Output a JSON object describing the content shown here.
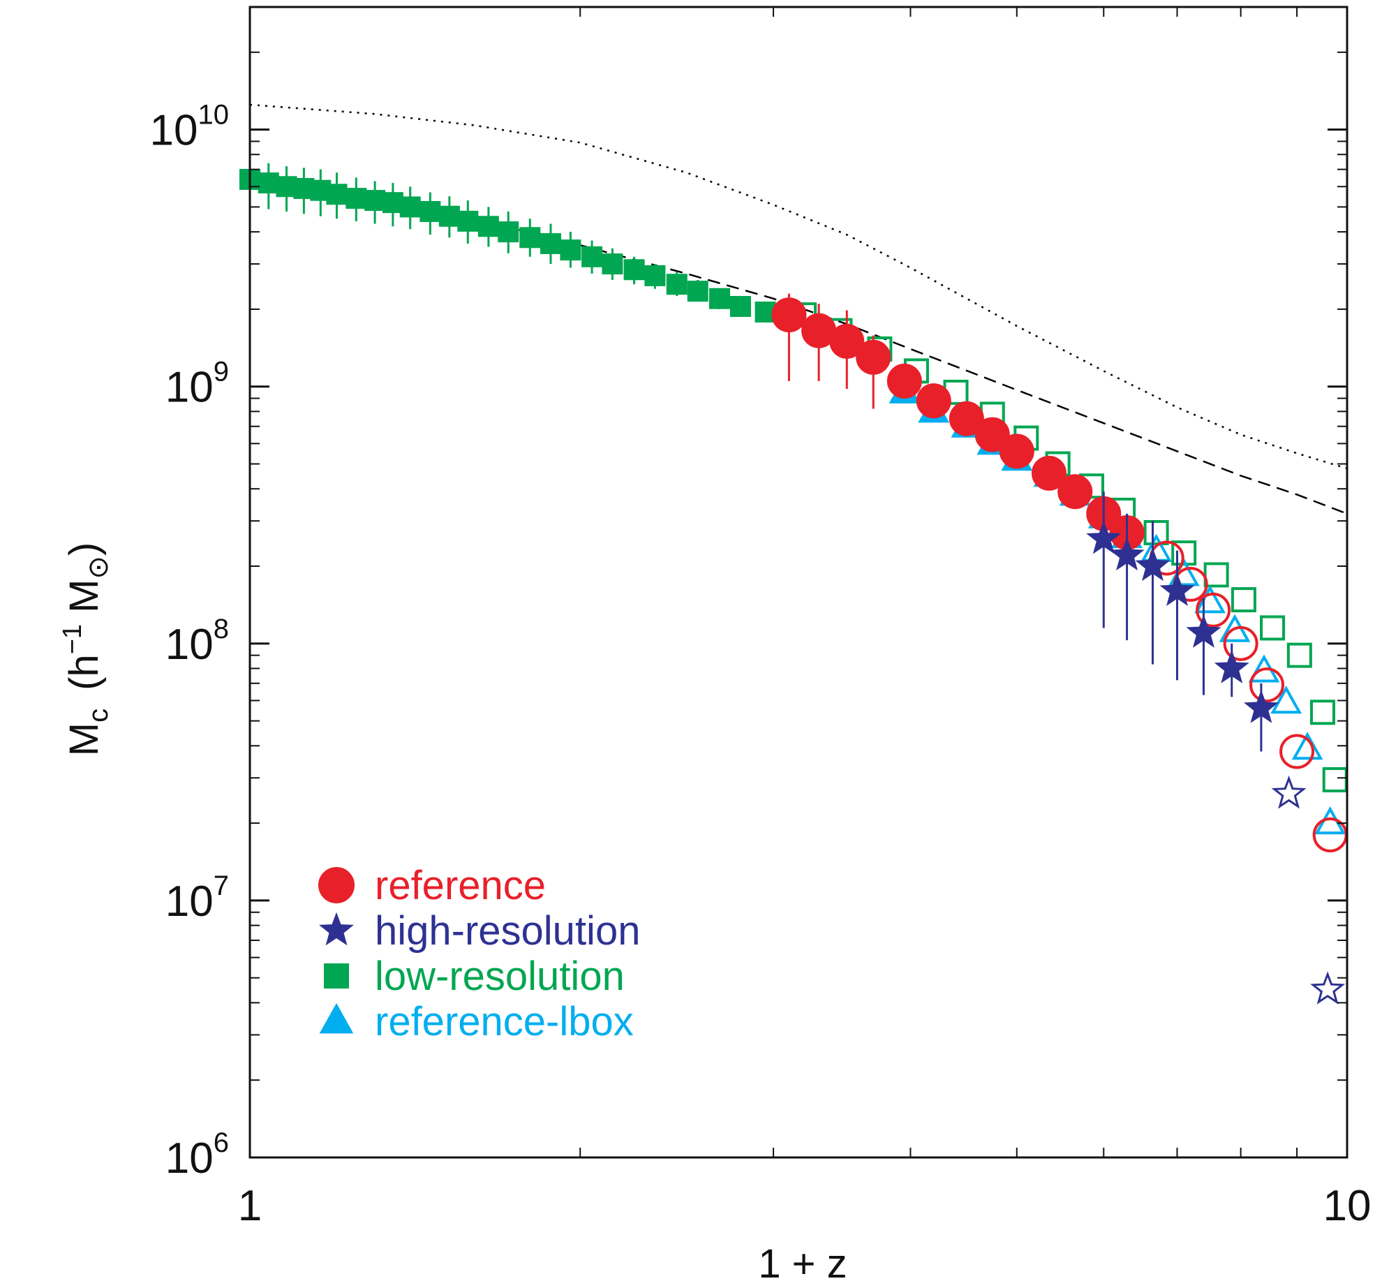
{
  "chart_data": {
    "type": "scatter",
    "title": "",
    "xlabel": "1 + z",
    "ylabel": "M_c (h^-1 M_sun)",
    "xscale": "log",
    "yscale": "log",
    "xlim": [
      1,
      10
    ],
    "ylim": [
      1000000,
      30000000000.0
    ],
    "grid": false,
    "legend_position": "bottom-left",
    "x_tick_labels": [
      {
        "value": 1,
        "label": "1"
      },
      {
        "value": 10,
        "label": "10"
      }
    ],
    "y_tick_labels": [
      {
        "value": 1000000,
        "base": "10",
        "exp": "6"
      },
      {
        "value": 10000000,
        "base": "10",
        "exp": "7"
      },
      {
        "value": 100000000,
        "base": "10",
        "exp": "8"
      },
      {
        "value": 1000000000,
        "base": "10",
        "exp": "9"
      },
      {
        "value": 10000000000,
        "base": "10",
        "exp": "10"
      }
    ],
    "y_axis_label_parts": {
      "main": "M",
      "main_sub": "c",
      "unit_h": "(h",
      "unit_exp": "−1",
      "unit_m": " M",
      "unit_sub": "⊙",
      "close": ")"
    },
    "series": [
      {
        "name": "reference",
        "color": "#e8202a",
        "marker": "circle",
        "points": [
          {
            "x": 3.1,
            "y": 1900000000.0,
            "lo": 1050000000.0,
            "hi": 2300000000.0
          },
          {
            "x": 3.3,
            "y": 1650000000.0,
            "lo": 1050000000.0,
            "hi": 2100000000.0
          },
          {
            "x": 3.5,
            "y": 1500000000.0,
            "lo": 980000000.0,
            "hi": 1980000000.0
          },
          {
            "x": 3.7,
            "y": 1300000000.0,
            "lo": 820000000.0,
            "hi": 1580000000.0
          },
          {
            "x": 3.95,
            "y": 1050000000.0,
            "lo": 920000000.0,
            "hi": 1200000000.0
          },
          {
            "x": 4.2,
            "y": 880000000.0,
            "lo": 780000000.0,
            "hi": 980000000.0
          },
          {
            "x": 4.5,
            "y": 750000000.0,
            "lo": 690000000.0,
            "hi": 800000000.0
          },
          {
            "x": 4.75,
            "y": 650000000.0,
            "lo": 600000000.0,
            "hi": 700000000.0
          },
          {
            "x": 5.0,
            "y": 560000000.0,
            "lo": 520000000.0,
            "hi": 600000000.0
          },
          {
            "x": 5.35,
            "y": 460000000.0,
            "lo": 430000000.0,
            "hi": 500000000.0
          },
          {
            "x": 5.65,
            "y": 390000000.0,
            "lo": 370000000.0,
            "hi": 420000000.0
          },
          {
            "x": 6.0,
            "y": 320000000.0,
            "lo": 300000000.0,
            "hi": 340000000.0
          },
          {
            "x": 6.3,
            "y": 270000000.0,
            "lo": 250000000.0,
            "hi": 290000000.0
          },
          {
            "x": 6.85,
            "y": 215000000.0,
            "open": true
          },
          {
            "x": 7.2,
            "y": 170000000.0,
            "open": true
          },
          {
            "x": 7.55,
            "y": 135000000.0,
            "open": true
          },
          {
            "x": 8.0,
            "y": 100000000.0,
            "open": true
          },
          {
            "x": 8.45,
            "y": 69000000.0,
            "open": true
          },
          {
            "x": 9.0,
            "y": 38000000.0,
            "open": true
          },
          {
            "x": 9.65,
            "y": 18000000.0,
            "open": true
          }
        ]
      },
      {
        "name": "high-resolution",
        "color": "#2e3192",
        "marker": "star",
        "points": [
          {
            "x": 6.0,
            "y": 255000000.0,
            "lo": 115000000.0,
            "hi": 390000000.0
          },
          {
            "x": 6.3,
            "y": 220000000.0,
            "lo": 103000000.0,
            "hi": 320000000.0
          },
          {
            "x": 6.65,
            "y": 200000000.0,
            "lo": 83000000.0,
            "hi": 300000000.0
          },
          {
            "x": 7.0,
            "y": 160000000.0,
            "lo": 72000000.0,
            "hi": 230000000.0
          },
          {
            "x": 7.4,
            "y": 110000000.0,
            "lo": 63000000.0,
            "hi": 150000000.0
          },
          {
            "x": 7.85,
            "y": 80000000.0,
            "lo": 62000000.0,
            "hi": 100000000.0
          },
          {
            "x": 8.35,
            "y": 56000000.0,
            "lo": 38000000.0,
            "hi": 70000000.0
          },
          {
            "x": 8.85,
            "y": 26000000.0,
            "open": true
          },
          {
            "x": 9.6,
            "y": 4500000.0,
            "open": true
          }
        ]
      },
      {
        "name": "low-resolution",
        "color": "#00a651",
        "marker": "square",
        "points": [
          {
            "x": 1.0,
            "y": 6400000000.0,
            "lo": 5000000000.0,
            "hi": 7600000000.0
          },
          {
            "x": 1.04,
            "y": 6200000000.0,
            "lo": 4900000000.0,
            "hi": 7400000000.0
          },
          {
            "x": 1.08,
            "y": 6000000000.0,
            "lo": 4800000000.0,
            "hi": 7200000000.0
          },
          {
            "x": 1.12,
            "y": 5900000000.0,
            "lo": 4700000000.0,
            "hi": 7100000000.0
          },
          {
            "x": 1.16,
            "y": 5800000000.0,
            "lo": 4600000000.0,
            "hi": 7000000000.0
          },
          {
            "x": 1.2,
            "y": 5600000000.0,
            "lo": 4500000000.0,
            "hi": 6800000000.0
          },
          {
            "x": 1.25,
            "y": 5400000000.0,
            "lo": 4400000000.0,
            "hi": 6500000000.0
          },
          {
            "x": 1.3,
            "y": 5300000000.0,
            "lo": 4300000000.0,
            "hi": 6300000000.0
          },
          {
            "x": 1.35,
            "y": 5200000000.0,
            "lo": 4200000000.0,
            "hi": 6200000000.0
          },
          {
            "x": 1.4,
            "y": 5000000000.0,
            "lo": 4100000000.0,
            "hi": 6000000000.0
          },
          {
            "x": 1.46,
            "y": 4800000000.0,
            "lo": 3900000000.0,
            "hi": 5700000000.0
          },
          {
            "x": 1.52,
            "y": 4600000000.0,
            "lo": 3800000000.0,
            "hi": 5500000000.0
          },
          {
            "x": 1.58,
            "y": 4400000000.0,
            "lo": 3600000000.0,
            "hi": 5300000000.0
          },
          {
            "x": 1.65,
            "y": 4200000000.0,
            "lo": 3500000000.0,
            "hi": 5000000000.0
          },
          {
            "x": 1.72,
            "y": 4000000000.0,
            "lo": 3300000000.0,
            "hi": 4800000000.0
          },
          {
            "x": 1.8,
            "y": 3800000000.0,
            "lo": 3200000000.0,
            "hi": 4500000000.0
          },
          {
            "x": 1.88,
            "y": 3600000000.0,
            "lo": 3000000000.0,
            "hi": 4300000000.0
          },
          {
            "x": 1.96,
            "y": 3400000000.0,
            "lo": 2900000000.0,
            "hi": 4000000000.0
          },
          {
            "x": 2.05,
            "y": 3200000000.0,
            "lo": 2750000000.0,
            "hi": 3700000000.0
          },
          {
            "x": 2.14,
            "y": 3000000000.0,
            "lo": 2600000000.0,
            "hi": 3450000000.0
          },
          {
            "x": 2.24,
            "y": 2850000000.0,
            "lo": 2500000000.0,
            "hi": 3200000000.0
          },
          {
            "x": 2.34,
            "y": 2700000000.0,
            "lo": 2400000000.0,
            "hi": 3000000000.0
          },
          {
            "x": 2.45,
            "y": 2500000000.0,
            "lo": 2250000000.0,
            "hi": 2800000000.0
          },
          {
            "x": 2.56,
            "y": 2350000000.0,
            "lo": 2150000000.0,
            "hi": 2600000000.0
          },
          {
            "x": 2.68,
            "y": 2200000000.0,
            "lo": 2000000000.0,
            "hi": 2400000000.0
          },
          {
            "x": 2.8,
            "y": 2050000000.0,
            "lo": 1900000000.0,
            "hi": 2200000000.0
          },
          {
            "x": 2.95,
            "y": 1950000000.0,
            "lo": 1850000000.0,
            "hi": 2050000000.0
          },
          {
            "x": 3.2,
            "y": 1900000000.0,
            "open": true
          },
          {
            "x": 3.45,
            "y": 1650000000.0,
            "open": true
          },
          {
            "x": 3.75,
            "y": 1400000000.0,
            "open": true
          },
          {
            "x": 4.05,
            "y": 1150000000.0,
            "open": true
          },
          {
            "x": 4.4,
            "y": 950000000.0,
            "open": true
          },
          {
            "x": 4.75,
            "y": 780000000.0,
            "open": true
          },
          {
            "x": 5.1,
            "y": 630000000.0,
            "open": true
          },
          {
            "x": 5.45,
            "y": 500000000.0,
            "open": true
          },
          {
            "x": 5.85,
            "y": 410000000.0,
            "open": true
          },
          {
            "x": 6.25,
            "y": 330000000.0,
            "open": true
          },
          {
            "x": 6.7,
            "y": 270000000.0,
            "open": true
          },
          {
            "x": 7.1,
            "y": 225000000.0,
            "open": true
          },
          {
            "x": 7.6,
            "y": 185000000.0,
            "open": true
          },
          {
            "x": 8.05,
            "y": 148000000.0,
            "open": true
          },
          {
            "x": 8.55,
            "y": 115000000.0,
            "open": true
          },
          {
            "x": 9.05,
            "y": 90000000.0,
            "open": true
          },
          {
            "x": 9.5,
            "y": 54000000.0,
            "open": true
          },
          {
            "x": 9.75,
            "y": 29500000.0,
            "open": true
          }
        ]
      },
      {
        "name": "reference-lbox",
        "color": "#00aeef",
        "marker": "triangle",
        "points": [
          {
            "x": 3.95,
            "y": 950000000.0
          },
          {
            "x": 4.2,
            "y": 800000000.0
          },
          {
            "x": 4.5,
            "y": 700000000.0
          },
          {
            "x": 4.75,
            "y": 600000000.0
          },
          {
            "x": 5.0,
            "y": 520000000.0
          },
          {
            "x": 5.35,
            "y": 450000000.0
          },
          {
            "x": 5.65,
            "y": 380000000.0
          },
          {
            "x": 6.0,
            "y": 310000000.0
          },
          {
            "x": 6.3,
            "y": 260000000.0
          },
          {
            "x": 6.7,
            "y": 230000000.0,
            "open": true
          },
          {
            "x": 7.1,
            "y": 185000000.0,
            "open": true
          },
          {
            "x": 7.5,
            "y": 145000000.0,
            "open": true
          },
          {
            "x": 7.9,
            "y": 112000000.0,
            "open": true
          },
          {
            "x": 8.4,
            "y": 78000000.0,
            "open": true
          },
          {
            "x": 8.8,
            "y": 59000000.0,
            "open": true
          },
          {
            "x": 9.2,
            "y": 39000000.0,
            "open": true
          },
          {
            "x": 9.65,
            "y": 20000000.0,
            "open": true
          }
        ]
      }
    ],
    "lines": [
      {
        "style": "dashed",
        "color": "#000000",
        "points": [
          [
            1,
            6300000000.0
          ],
          [
            1.3,
            5300000000.0
          ],
          [
            1.6,
            4500000000.0
          ],
          [
            2,
            3550000000.0
          ],
          [
            2.5,
            2750000000.0
          ],
          [
            3,
            2200000000.0
          ],
          [
            3.5,
            1750000000.0
          ],
          [
            4,
            1400000000.0
          ],
          [
            5,
            970000000.0
          ],
          [
            6,
            720000000.0
          ],
          [
            7,
            560000000.0
          ],
          [
            8,
            450000000.0
          ],
          [
            9,
            380000000.0
          ],
          [
            10,
            320000000.0
          ]
        ]
      },
      {
        "style": "dotted",
        "color": "#000000",
        "points": [
          [
            1,
            12500000000.0
          ],
          [
            1.3,
            11500000000.0
          ],
          [
            1.6,
            10400000000.0
          ],
          [
            2,
            8900000000.0
          ],
          [
            2.5,
            6800000000.0
          ],
          [
            3,
            5100000000.0
          ],
          [
            3.5,
            3900000000.0
          ],
          [
            4,
            2900000000.0
          ],
          [
            5,
            1720000000.0
          ],
          [
            6,
            1150000000.0
          ],
          [
            7,
            830000000.0
          ],
          [
            8,
            650000000.0
          ],
          [
            9,
            550000000.0
          ],
          [
            10,
            480000000.0
          ]
        ]
      }
    ]
  }
}
